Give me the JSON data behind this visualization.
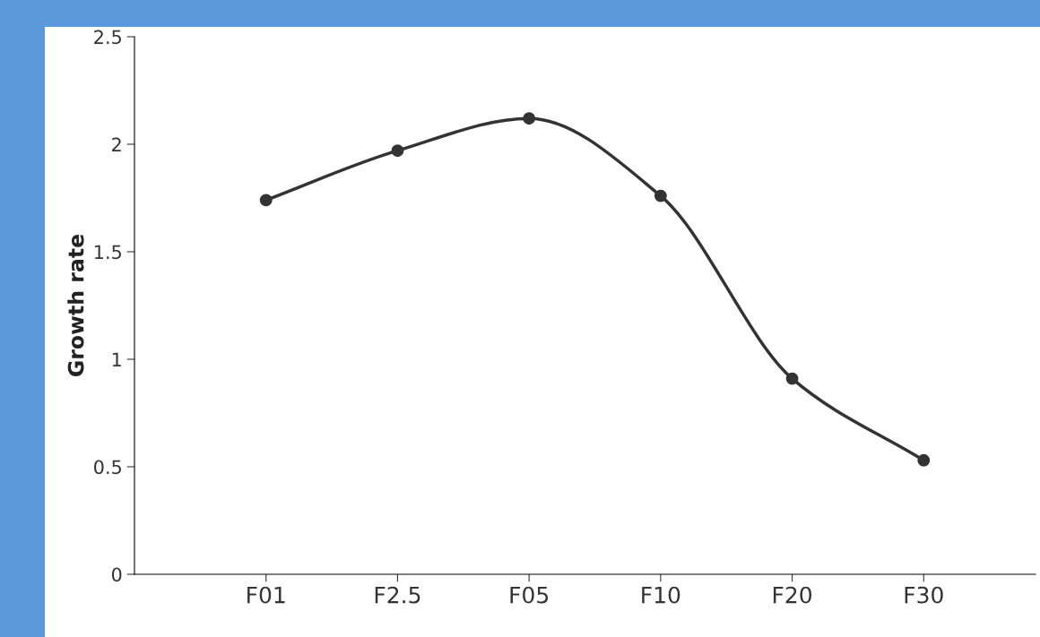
{
  "chart_data": {
    "type": "line",
    "ylabel": "Growth rate",
    "categories": [
      "F01",
      "F2.5",
      "F05",
      "F10",
      "F20",
      "F30"
    ],
    "series": [
      {
        "color": "#333333",
        "values": [
          1.74,
          1.97,
          2.12,
          1.76,
          0.91,
          0.53
        ]
      }
    ],
    "ylim": [
      0,
      2.5
    ],
    "yticks": [
      0,
      0.5,
      1,
      1.5,
      2,
      2.5
    ],
    "grid": false,
    "marker": "circle",
    "line_style": "solid"
  }
}
